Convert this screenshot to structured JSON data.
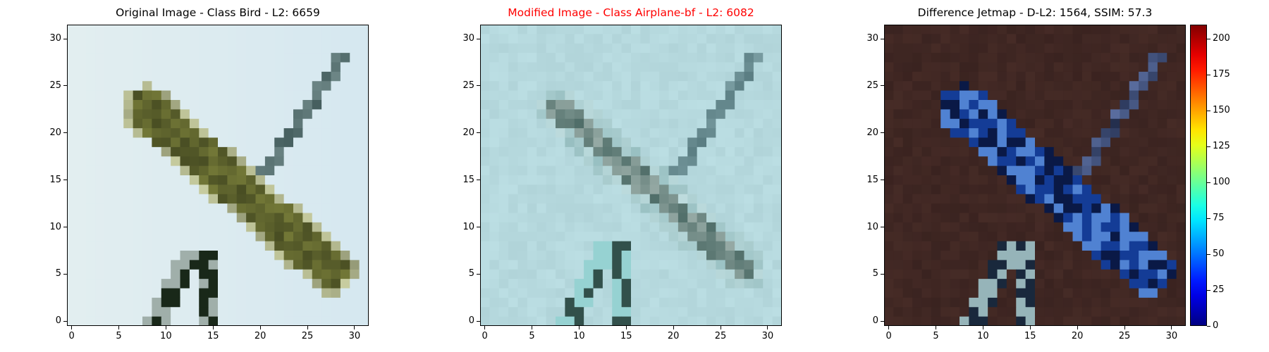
{
  "chart_data": [
    {
      "type": "heatmap",
      "title": "Original Image - Class Bird - L2: 6659",
      "title_color": "#000000",
      "image": "cifar-style 32x32 photo: olive-green bird with dark markings crossed by a dark diagonal line (stick/branch) on pale sky background",
      "x_ticks": [
        0,
        5,
        10,
        15,
        20,
        25,
        30
      ],
      "y_ticks": [
        0,
        5,
        10,
        15,
        20,
        25,
        30
      ],
      "xlim": [
        -0.5,
        31.5
      ],
      "ylim": [
        31.5,
        -0.5
      ],
      "background_color": "#e2eef0"
    },
    {
      "type": "heatmap",
      "title": "Modified Image - Class Airplane-bf - L2: 6082",
      "title_color": "#ff0000",
      "image": "same scene re-rendered with bluish tint; the bird becomes a slate/teal shape forming an X shape",
      "x_ticks": [
        0,
        5,
        10,
        15,
        20,
        25,
        30
      ],
      "y_ticks": [
        0,
        5,
        10,
        15,
        20,
        25,
        30
      ],
      "xlim": [
        -0.5,
        31.5
      ],
      "ylim": [
        31.5,
        -0.5
      ],
      "background_color": "#b6d9de"
    },
    {
      "type": "heatmap",
      "title": "Difference Jetmap - D-L2: 1564, SSIM: 57.3",
      "title_color": "#000000",
      "image": "difference heatmap: dark brown background with blue pixels along the bird shape and lighter steel blue/white near the feet",
      "x_ticks": [
        0,
        5,
        10,
        15,
        20,
        25,
        30
      ],
      "y_ticks": [
        0,
        5,
        10,
        15,
        20,
        25,
        30
      ],
      "xlim": [
        -0.5,
        31.5
      ],
      "ylim": [
        31.5,
        -0.5
      ],
      "background_color": "#3a2320",
      "colorbar": {
        "colormap": "jet",
        "range": [
          0,
          210
        ],
        "ticks": [
          0,
          25,
          50,
          75,
          100,
          125,
          150,
          175,
          200
        ]
      }
    }
  ]
}
